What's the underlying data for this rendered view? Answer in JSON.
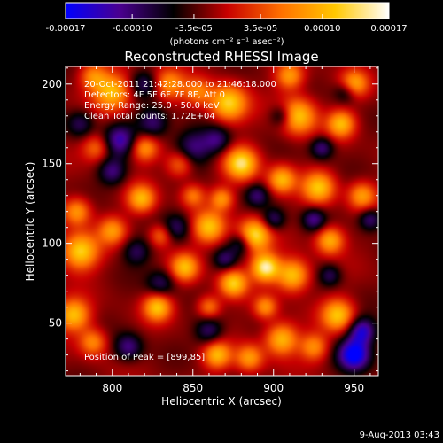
{
  "chart_data": {
    "type": "heatmap",
    "title": "Reconstructed RHESSI Image",
    "xlabel": "Heliocentric X (arcsec)",
    "ylabel": "Heliocentric Y (arcsec)",
    "xlim": [
      771,
      965
    ],
    "ylim": [
      17,
      211
    ],
    "xticks": [
      800,
      850,
      900,
      950
    ],
    "yticks": [
      50,
      100,
      150,
      200
    ],
    "colorbar": {
      "range": [
        -0.00017,
        0.00017
      ],
      "tick_values": [
        -0.00017,
        -0.0001,
        -3.5e-05,
        3.5e-05,
        0.0001,
        0.00017
      ],
      "tick_labels": [
        "-0.00017",
        "-0.00010",
        "-3.5e-05",
        "3.5e-05",
        "0.00010",
        "0.00017"
      ],
      "unit_label": "(photons cm⁻² s⁻¹ asec⁻²)",
      "colors": [
        "#0000ff",
        "#4a0090",
        "#000000",
        "#c80000",
        "#ff7000",
        "#ffc800",
        "#ffffff"
      ]
    },
    "annotations": [
      "20-Oct-2011 21:42:28.000  to 21:46:18.000",
      "Detectors: 4F 5F 6F 7F 8F, Att 0",
      "Energy Range: 25.0 - 50.0 keV",
      "Clean     Total counts: 1.72E+04"
    ],
    "peak": {
      "label": "Position of Peak = [899,85]",
      "x": 899,
      "y": 85
    },
    "limb_color": "#ffffff",
    "blobs": [
      [
        895,
        85,
        1.0,
        6
      ],
      [
        888,
        105,
        0.9,
        7
      ],
      [
        880,
        150,
        0.9,
        7
      ],
      [
        872,
        188,
        0.85,
        8
      ],
      [
        875,
        75,
        0.8,
        6
      ],
      [
        860,
        110,
        0.75,
        7
      ],
      [
        845,
        85,
        0.7,
        6
      ],
      [
        828,
        60,
        0.75,
        6
      ],
      [
        842,
        150,
        0.5,
        6
      ],
      [
        818,
        128,
        0.7,
        6
      ],
      [
        800,
        108,
        0.55,
        6
      ],
      [
        780,
        95,
        0.85,
        8
      ],
      [
        776,
        55,
        0.75,
        7
      ],
      [
        778,
        120,
        0.6,
        6
      ],
      [
        800,
        195,
        0.75,
        8
      ],
      [
        788,
        205,
        0.5,
        6
      ],
      [
        835,
        200,
        0.55,
        7
      ],
      [
        853,
        195,
        0.45,
        6
      ],
      [
        912,
        80,
        0.8,
        7
      ],
      [
        905,
        40,
        0.75,
        7
      ],
      [
        905,
        140,
        0.7,
        6
      ],
      [
        915,
        180,
        0.8,
        8
      ],
      [
        910,
        205,
        0.6,
        6
      ],
      [
        928,
        135,
        0.75,
        7
      ],
      [
        935,
        102,
        0.7,
        6
      ],
      [
        940,
        55,
        0.75,
        7
      ],
      [
        942,
        175,
        0.7,
        6
      ],
      [
        950,
        200,
        0.65,
        6
      ],
      [
        955,
        130,
        0.6,
        6
      ],
      [
        865,
        30,
        0.7,
        6
      ],
      [
        885,
        28,
        0.6,
        6
      ],
      [
        895,
        60,
        0.55,
        5
      ],
      [
        820,
        160,
        0.6,
        6
      ],
      [
        790,
        160,
        0.45,
        6
      ],
      [
        860,
        60,
        0.5,
        5
      ],
      [
        850,
        130,
        0.45,
        5
      ],
      [
        788,
        38,
        0.55,
        6
      ],
      [
        925,
        35,
        0.55,
        6
      ],
      [
        868,
        128,
        0.55,
        5
      ],
      [
        830,
        105,
        0.45,
        5
      ],
      [
        805,
        165,
        -0.6,
        7
      ],
      [
        800,
        145,
        -0.5,
        6
      ],
      [
        825,
        175,
        -0.5,
        7
      ],
      [
        850,
        160,
        -0.5,
        8
      ],
      [
        865,
        165,
        -0.45,
        6
      ],
      [
        815,
        95,
        -0.4,
        6
      ],
      [
        830,
        75,
        -0.4,
        6
      ],
      [
        880,
        100,
        -0.45,
        5
      ],
      [
        840,
        110,
        -0.4,
        6
      ],
      [
        950,
        30,
        -0.9,
        7
      ],
      [
        955,
        45,
        -0.7,
        6
      ],
      [
        925,
        115,
        -0.5,
        5
      ],
      [
        900,
        115,
        -0.45,
        5
      ],
      [
        890,
        130,
        -0.4,
        5
      ],
      [
        935,
        80,
        -0.4,
        5
      ],
      [
        860,
        45,
        -0.45,
        6
      ],
      [
        810,
        35,
        -0.5,
        6
      ],
      [
        780,
        175,
        -0.4,
        6
      ],
      [
        930,
        160,
        -0.5,
        5
      ],
      [
        945,
        195,
        -0.4,
        5
      ],
      [
        870,
        90,
        -0.4,
        5
      ],
      [
        905,
        180,
        -0.45,
        5
      ],
      [
        820,
        200,
        -0.4,
        6
      ],
      [
        960,
        115,
        -0.5,
        5
      ]
    ]
  },
  "footer": {
    "date": "9-Aug-2013 03:43"
  }
}
